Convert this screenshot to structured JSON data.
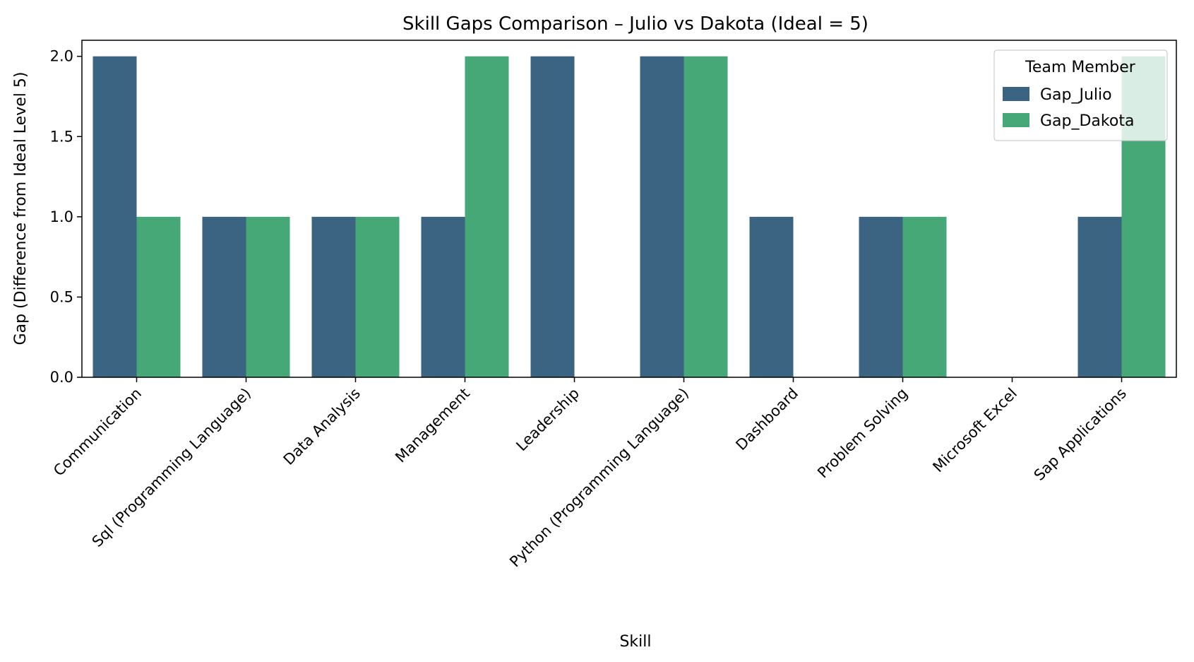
{
  "chart_data": {
    "type": "bar",
    "title": "Skill Gaps Comparison – Julio vs Dakota (Ideal = 5)",
    "xlabel": "Skill",
    "ylabel": "Gap (Difference from Ideal Level 5)",
    "ylim": [
      0,
      2.1
    ],
    "yticks": [
      "0.0",
      "0.5",
      "1.0",
      "1.5",
      "2.0"
    ],
    "grid": false,
    "categories": [
      "Communication",
      "Sql (Programming Language)",
      "Data Analysis",
      "Management",
      "Leadership",
      "Python (Programming Language)",
      "Dashboard",
      "Problem Solving",
      "Microsoft Excel",
      "Sap Applications"
    ],
    "series": [
      {
        "name": "Gap_Julio",
        "color": "#3b6482",
        "values": [
          2,
          1,
          1,
          1,
          2,
          2,
          1,
          1,
          0,
          1
        ]
      },
      {
        "name": "Gap_Dakota",
        "color": "#46a777",
        "values": [
          1,
          1,
          1,
          2,
          0,
          2,
          0,
          1,
          0,
          2
        ]
      }
    ],
    "legend": {
      "title": "Team Member",
      "placement": "top-right"
    }
  }
}
